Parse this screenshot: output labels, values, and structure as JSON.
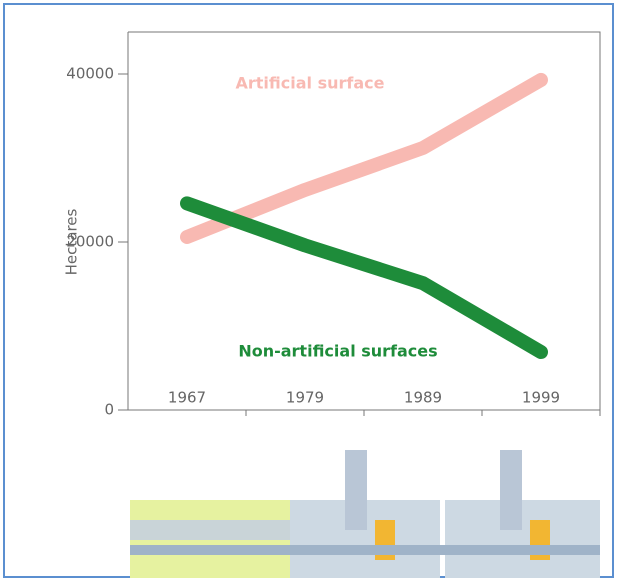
{
  "chart_data": {
    "type": "line",
    "y_label": "Hectares",
    "categories": [
      "1967",
      "1979",
      "1989",
      "1999"
    ],
    "series": [
      {
        "name": "Artificial surface",
        "color": "#f8b9b2",
        "values": [
          20600,
          26200,
          31200,
          39300
        ]
      },
      {
        "name": "Non-artificial surfaces",
        "color": "#1e8c3a",
        "values": [
          24600,
          19600,
          15100,
          6900
        ]
      }
    ],
    "ylim": [
      0,
      45000
    ],
    "yticks": [
      0,
      20000,
      40000
    ],
    "grid": false
  }
}
